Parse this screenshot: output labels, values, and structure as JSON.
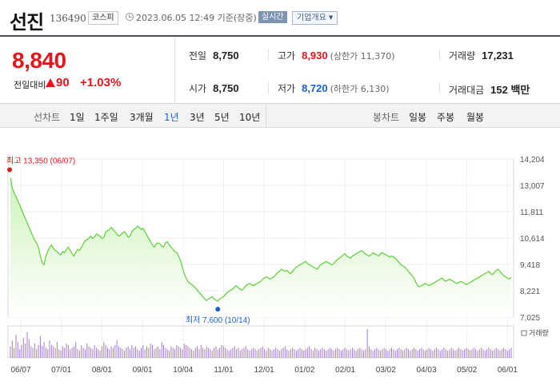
{
  "header": {
    "stock_name": "선진",
    "stock_code": "136490",
    "market": "코스피",
    "datetime": "2023.06.05 12:49 기준(장중)",
    "realtime_label": "실시간",
    "company_info_label": "기업개요"
  },
  "summary": {
    "price": "8,840",
    "change_label": "전일대비",
    "change_value": "90",
    "change_rate": "+1.03%",
    "stats": {
      "prev_close_label": "전일",
      "prev_close": "8,750",
      "open_label": "시가",
      "open": "8,750",
      "high_label": "고가",
      "high": "8,930",
      "upper_limit": "(상한가 11,370)",
      "low_label": "저가",
      "low": "8,720",
      "lower_limit": "(하한가 6,130)",
      "volume_label": "거래량",
      "volume": "17,231",
      "amount_label": "거래대금",
      "amount": "152 백만"
    }
  },
  "period_bar": {
    "line_label": "선차트",
    "line_periods": [
      "1일",
      "1주일",
      "3개월",
      "1년",
      "3년",
      "5년",
      "10년"
    ],
    "active_period": "1년",
    "candle_label": "봉차트",
    "candle_periods": [
      "일봉",
      "주봉",
      "월봉"
    ]
  },
  "colors": {
    "up": "#e0181e",
    "down": "#1a62c8",
    "line": "#5fcf3a",
    "area_top": "#c9f2b6",
    "volume": "#a67bc2"
  },
  "chart_data": {
    "type": "area",
    "title": "",
    "ylim": [
      7025,
      14204
    ],
    "y_ticks": [
      "14,204",
      "13,007",
      "11,811",
      "10,614",
      "9,418",
      "8,221",
      "7,025"
    ],
    "x_ticks": [
      "06/07",
      "07/01",
      "08/01",
      "09/01",
      "10/04",
      "11/01",
      "12/01",
      "01/02",
      "02/01",
      "03/02",
      "04/03",
      "05/02",
      "06/01"
    ],
    "annotations": {
      "high": "최고 13,350 (06/07)",
      "high_value": 13350,
      "low": "최저 7,600 (10/14)",
      "low_value": 7600
    },
    "volume_label": "거래량",
    "series": [
      {
        "values": [
          13350,
          12900,
          12650,
          12500,
          12300,
          12100,
          11900,
          11700,
          11500,
          11300,
          11100,
          10900,
          10700,
          10500,
          10400,
          10200,
          9800,
          9500,
          9400,
          9800,
          10000,
          10200,
          10300,
          10150,
          10050,
          10000,
          9900,
          9850,
          10000,
          9950,
          10100,
          10200,
          10050,
          9900,
          9800,
          9950,
          10100,
          10050,
          10200,
          10350,
          10500,
          10550,
          10600,
          10700,
          10600,
          10650,
          10800,
          10750,
          10700,
          10600,
          10650,
          10900,
          10950,
          11000,
          11100,
          11000,
          10900,
          10800,
          10700,
          10750,
          10850,
          10900,
          10800,
          10650,
          10700,
          10900,
          11000,
          11050,
          11150,
          11100,
          11000,
          11050,
          10900,
          10750,
          10600,
          10450,
          10300,
          10200,
          10350,
          10400,
          10350,
          10250,
          10200,
          10400,
          10450,
          10300,
          10200,
          10100,
          10000,
          9950,
          9800,
          9600,
          9300,
          9000,
          8800,
          8650,
          8550,
          8500,
          8450,
          8350,
          8250,
          8150,
          8050,
          7950,
          7850,
          7780,
          7850,
          7900,
          7950,
          7850,
          7800,
          7750,
          7850,
          7900,
          7950,
          8050,
          8150,
          8200,
          8250,
          8300,
          8400,
          8450,
          8350,
          8300,
          8250,
          8350,
          8450,
          8500,
          8550,
          8500,
          8450,
          8500,
          8550,
          8600,
          8650,
          8750,
          8800,
          8850,
          8800,
          8750,
          8800,
          8850,
          8950,
          9050,
          9100,
          9200,
          9150,
          9100,
          9150,
          9050,
          9000,
          9100,
          9200,
          9300,
          9350,
          9400,
          9450,
          9500,
          9550,
          9450,
          9400,
          9350,
          9300,
          9250,
          9200,
          9300,
          9400,
          9450,
          9500,
          9550,
          9500,
          9450,
          9400,
          9450,
          9550,
          9650,
          9700,
          9750,
          9850,
          9900,
          9800,
          9750,
          9700,
          9800,
          9850,
          9900,
          9950,
          10000,
          10050,
          9950,
          9900,
          9850,
          9800,
          9850,
          9950,
          9900,
          9850,
          9800,
          9900,
          9950,
          9900,
          9850,
          9800,
          9750,
          9800,
          9750,
          9700,
          9600,
          9500,
          9400,
          9350,
          9300,
          9200,
          9100,
          9000,
          8900,
          8800,
          8600,
          8450,
          8400,
          8450,
          8500,
          8550,
          8500,
          8450,
          8500,
          8550,
          8600,
          8650,
          8700,
          8750,
          8800,
          8700,
          8650,
          8700,
          8750,
          8700,
          8650,
          8600,
          8550,
          8600,
          8650,
          8600,
          8550,
          8500,
          8550,
          8600,
          8650,
          8700,
          8750,
          8800,
          8850,
          8900,
          8950,
          9000,
          9050,
          9100,
          9000,
          8950,
          9050,
          9150,
          9200,
          9100,
          9000,
          8900,
          8850,
          8800,
          8750,
          8840
        ]
      }
    ],
    "volume_values": [
      40,
      60,
      35,
      80,
      55,
      30,
      45,
      70,
      50,
      90,
      65,
      40,
      35,
      50,
      30,
      45,
      75,
      40,
      55,
      35,
      30,
      60,
      45,
      40,
      35,
      55,
      30,
      25,
      40,
      35,
      50,
      45,
      30,
      35,
      40,
      55,
      30,
      25,
      45,
      35,
      30,
      50,
      40,
      35,
      30,
      45,
      35,
      30,
      25,
      40,
      55,
      45,
      35,
      30,
      40,
      35,
      45,
      60,
      40,
      35,
      30,
      25,
      35,
      40,
      30,
      45,
      35,
      40,
      30,
      25,
      35,
      45,
      30,
      40,
      35,
      50,
      45,
      30,
      35,
      40,
      30,
      55,
      45,
      35,
      30,
      25,
      40,
      35,
      30,
      45,
      40,
      35,
      30,
      50,
      45,
      40,
      35,
      30,
      25,
      35,
      40,
      30,
      45,
      35,
      30,
      40,
      35,
      30,
      25,
      35,
      40,
      30,
      35,
      45,
      40,
      35,
      30,
      25,
      30,
      35,
      40,
      30,
      35,
      25,
      30,
      35,
      40,
      30,
      25,
      30,
      35,
      30,
      25,
      30,
      35,
      40,
      30,
      25,
      35,
      30,
      25,
      30,
      35,
      30,
      25,
      30,
      35,
      40,
      30,
      25,
      30,
      35,
      30,
      25,
      30,
      35,
      30,
      25,
      30,
      35,
      40,
      30,
      25,
      35,
      30,
      25,
      30,
      35,
      30,
      25,
      30,
      35,
      30,
      25,
      30,
      35,
      30,
      25,
      30,
      35,
      30,
      25,
      30,
      35,
      30,
      25,
      30,
      35,
      30,
      25,
      30,
      100,
      40,
      30,
      25,
      30,
      35,
      30,
      25,
      30,
      35,
      30,
      25,
      30,
      35,
      30,
      25,
      30,
      35,
      30,
      25,
      30,
      35,
      30,
      25,
      30,
      35,
      30,
      25,
      30,
      35,
      30,
      25,
      30,
      35,
      30,
      25,
      30,
      35,
      30,
      25,
      30,
      35,
      30,
      25,
      30,
      35,
      30,
      25,
      30,
      35,
      30,
      25,
      30,
      35,
      30,
      25,
      30,
      35,
      30,
      25,
      30,
      35,
      30,
      25,
      30,
      35,
      30,
      25,
      30,
      35,
      30,
      25,
      30,
      35,
      30,
      25,
      30,
      35
    ]
  }
}
